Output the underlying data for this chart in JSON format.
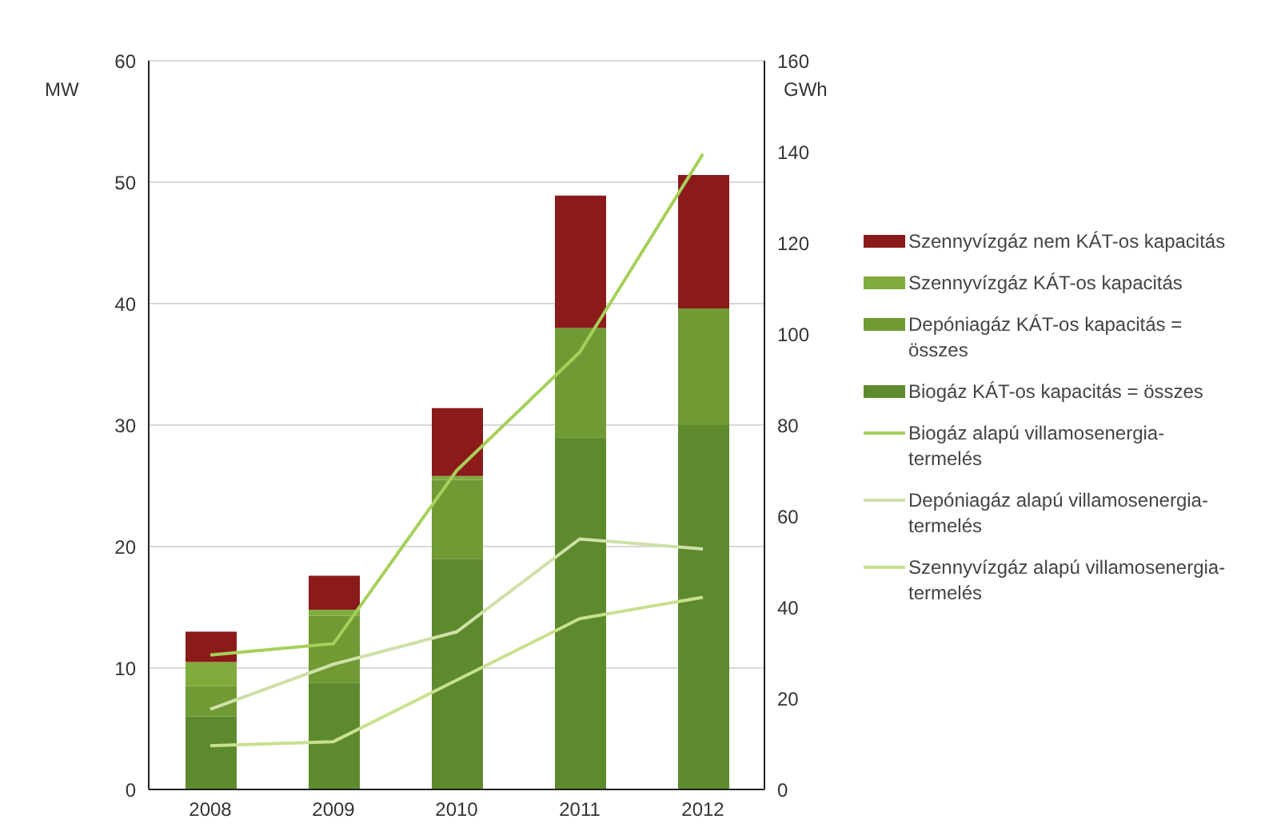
{
  "chart_data": {
    "type": "bar",
    "stacked": true,
    "categories": [
      "2008",
      "2009",
      "2010",
      "2011",
      "2012"
    ],
    "ylabel": "MW",
    "y2label": "GWh",
    "ylim": [
      0,
      60
    ],
    "yticks": [
      0,
      10,
      20,
      30,
      40,
      50,
      60
    ],
    "y2lim": [
      0,
      160
    ],
    "y2ticks": [
      0,
      20,
      40,
      60,
      80,
      100,
      120,
      140,
      160
    ],
    "grid": "y",
    "legend": "right",
    "series": [
      {
        "name": "Biogáz KÁT-os kapacitás = összes",
        "color": "#5e8a2e",
        "values": [
          6,
          8.8,
          19,
          29,
          30
        ]
      },
      {
        "name": "Depóniagáz KÁT-os kapacitás = összes",
        "color": "#6f9a34",
        "values": [
          2.5,
          5.5,
          6.5,
          9,
          9.6
        ]
      },
      {
        "name": "Szennyvízgáz KÁT-os kapacitás",
        "color": "#7fac3c",
        "values": [
          2,
          0.5,
          0.3,
          0,
          0
        ]
      },
      {
        "name": "Szennyvízgáz nem KÁT-os kapacitás",
        "color": "#8b1a1a",
        "values": [
          2.5,
          2.8,
          5.6,
          10.9,
          11
        ]
      },
      {
        "name": "Biogáz alapú villamosenergia-termelés",
        "type": "line",
        "axis": "y2",
        "color": "#a6d05a",
        "values": [
          29.5,
          32,
          70,
          96,
          139.5
        ]
      },
      {
        "name": "Depóniagáz alapú villamosenergia-termelés",
        "type": "line",
        "axis": "y2",
        "color": "#cfe0a8",
        "values": [
          17.6,
          27.5,
          34.6,
          55,
          52.8
        ]
      },
      {
        "name": "Szennyvízgáz alapú villamosenergia-termelés",
        "type": "line",
        "axis": "y2",
        "color": "#c9e08e",
        "values": [
          9.6,
          10.5,
          24,
          37.5,
          42.2
        ]
      }
    ]
  }
}
